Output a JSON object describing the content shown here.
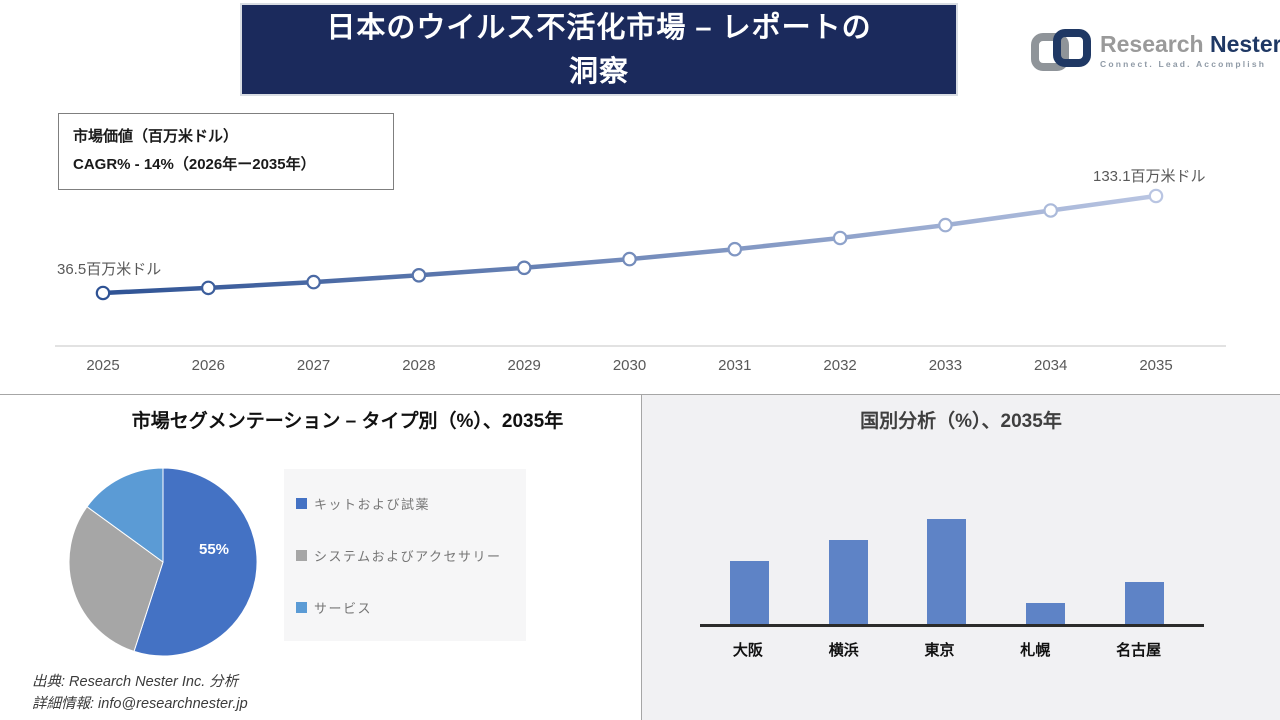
{
  "header": {
    "title_line1": "日本のウイルス不活化市場 – レポートの",
    "title_line2": "洞察"
  },
  "brand": {
    "word1": "Research",
    "word2": "Nester",
    "tagline": "Connect. Lead. Accomplish"
  },
  "info_box": {
    "line1": "市場価値（百万米ドル）",
    "line2": "CAGR% - 14%（2026年ー2035年）"
  },
  "chart_data": [
    {
      "type": "line",
      "title": "市場価値（百万米ドル）",
      "x": [
        2025,
        2026,
        2027,
        2028,
        2029,
        2030,
        2031,
        2032,
        2033,
        2034,
        2035
      ],
      "values": [
        36.5,
        41.6,
        47.4,
        54.1,
        61.6,
        70.3,
        80.1,
        91.3,
        104.1,
        118.7,
        133.1
      ],
      "first_point_label": "36.5百万米ドル",
      "last_point_label": "133.1百万米ドル",
      "line_color_start": "#2e5294",
      "line_color_end": "#b9c5e2",
      "marker_fill": "#ffffff",
      "axis_color": "#d9d9d9",
      "grid": false,
      "legend_position": "none"
    },
    {
      "type": "pie",
      "title": "市場セグメンテーション – タイプ別（%）、2035年",
      "slices": [
        {
          "label": "キットおよび試薬",
          "value": 55,
          "color": "#4472c4",
          "data_label": "55%"
        },
        {
          "label": "システムおよびアクセサリー",
          "value": 30,
          "color": "#a6a6a6",
          "data_label": ""
        },
        {
          "label": "サービス",
          "value": 15,
          "color": "#5b9bd5",
          "data_label": ""
        }
      ],
      "legend_position": "right"
    },
    {
      "type": "bar",
      "title": "国別分析（%）、2035年",
      "categories": [
        "大阪",
        "横浜",
        "東京",
        "札幌",
        "名古屋"
      ],
      "values": [
        30,
        40,
        50,
        10,
        20
      ],
      "ylim": [
        0,
        55
      ],
      "bar_color": "#5e83c6",
      "grid": false
    }
  ],
  "footer": {
    "line1": "出典: Research Nester Inc. 分析",
    "line2": "詳細情報: info@researchnester.jp"
  }
}
